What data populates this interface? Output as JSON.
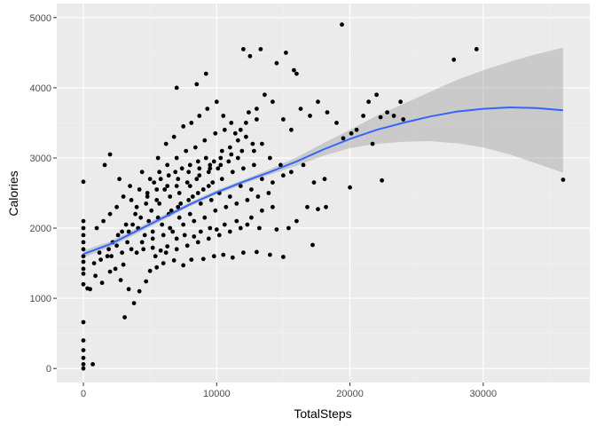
{
  "chart_data": {
    "type": "scatter",
    "title": "",
    "xlabel": "TotalSteps",
    "ylabel": "Calories",
    "xlim": [
      -2000,
      38000
    ],
    "ylim": [
      -200,
      5200
    ],
    "x_ticks": [
      0,
      10000,
      20000,
      30000
    ],
    "x_tick_labels": [
      "0",
      "10000",
      "20000",
      "30000"
    ],
    "y_ticks": [
      0,
      1000,
      2000,
      3000,
      4000,
      5000
    ],
    "y_tick_labels": [
      "0",
      "1000",
      "2000",
      "3000",
      "4000",
      "5000"
    ],
    "grid": true,
    "legend": "none",
    "colors": {
      "panel_background": "#ebebeb",
      "grid_major": "#ffffff",
      "grid_minor": "#f2f2f2",
      "points": "#000000",
      "smooth_line": "#3366ff",
      "confidence_band": "#999999"
    },
    "series": [
      {
        "kind": "points",
        "points": [
          [
            0,
            0
          ],
          [
            0,
            60
          ],
          [
            0,
            150
          ],
          [
            0,
            260
          ],
          [
            0,
            400
          ],
          [
            0,
            660
          ],
          [
            0,
            1200
          ],
          [
            0,
            1350
          ],
          [
            0,
            1420
          ],
          [
            0,
            1520
          ],
          [
            0,
            1600
          ],
          [
            0,
            1700
          ],
          [
            0,
            1800
          ],
          [
            0,
            1900
          ],
          [
            0,
            2000
          ],
          [
            0,
            2100
          ],
          [
            0,
            2660
          ],
          [
            700,
            60
          ],
          [
            300,
            1140
          ],
          [
            500,
            1130
          ],
          [
            900,
            1320
          ],
          [
            1400,
            1220
          ],
          [
            2000,
            1380
          ],
          [
            2400,
            1420
          ],
          [
            3000,
            1480
          ],
          [
            3400,
            1130
          ],
          [
            3800,
            930
          ],
          [
            4200,
            1100
          ],
          [
            4700,
            1240
          ],
          [
            5000,
            1390
          ],
          [
            5500,
            1440
          ],
          [
            6000,
            1500
          ],
          [
            6800,
            1540
          ],
          [
            7500,
            1470
          ],
          [
            8100,
            1550
          ],
          [
            9000,
            1560
          ],
          [
            9800,
            1600
          ],
          [
            10500,
            1620
          ],
          [
            11200,
            1580
          ],
          [
            12000,
            1650
          ],
          [
            13000,
            1660
          ],
          [
            14000,
            1620
          ],
          [
            15000,
            1590
          ],
          [
            3100,
            730
          ],
          [
            2800,
            1260
          ],
          [
            1800,
            1600
          ],
          [
            2500,
            1750
          ],
          [
            3300,
            1800
          ],
          [
            4000,
            1650
          ],
          [
            4500,
            1700
          ],
          [
            5200,
            1720
          ],
          [
            5800,
            1680
          ],
          [
            6300,
            1740
          ],
          [
            7000,
            1850
          ],
          [
            7600,
            1900
          ],
          [
            8300,
            1880
          ],
          [
            8800,
            1950
          ],
          [
            9500,
            2000
          ],
          [
            10000,
            1980
          ],
          [
            10600,
            2050
          ],
          [
            11500,
            2100
          ],
          [
            12300,
            2050
          ],
          [
            13200,
            2000
          ],
          [
            14500,
            1980
          ],
          [
            15400,
            2000
          ],
          [
            16000,
            2100
          ],
          [
            17200,
            1760
          ],
          [
            16800,
            2300
          ],
          [
            17600,
            2270
          ],
          [
            18200,
            2300
          ],
          [
            1000,
            2000
          ],
          [
            1500,
            2100
          ],
          [
            2000,
            2200
          ],
          [
            2500,
            2300
          ],
          [
            3000,
            2450
          ],
          [
            3600,
            2400
          ],
          [
            4200,
            2550
          ],
          [
            4800,
            2500
          ],
          [
            5300,
            2650
          ],
          [
            5800,
            2700
          ],
          [
            6400,
            2750
          ],
          [
            6900,
            2800
          ],
          [
            7400,
            2850
          ],
          [
            8000,
            2900
          ],
          [
            8600,
            2950
          ],
          [
            9200,
            3000
          ],
          [
            9800,
            2950
          ],
          [
            10400,
            3100
          ],
          [
            11000,
            3150
          ],
          [
            11600,
            3250
          ],
          [
            12200,
            3300
          ],
          [
            12800,
            3100
          ],
          [
            13400,
            3200
          ],
          [
            14000,
            3000
          ],
          [
            14800,
            2900
          ],
          [
            15600,
            2800
          ],
          [
            16500,
            2900
          ],
          [
            17300,
            2650
          ],
          [
            18100,
            2700
          ],
          [
            1600,
            2900
          ],
          [
            2000,
            3050
          ],
          [
            2700,
            2700
          ],
          [
            3500,
            2600
          ],
          [
            4400,
            2800
          ],
          [
            5600,
            3000
          ],
          [
            6200,
            3200
          ],
          [
            6800,
            3300
          ],
          [
            7500,
            3450
          ],
          [
            8100,
            3500
          ],
          [
            8700,
            3600
          ],
          [
            9300,
            3700
          ],
          [
            10000,
            3800
          ],
          [
            10500,
            3600
          ],
          [
            11100,
            3500
          ],
          [
            11800,
            3400
          ],
          [
            12400,
            3650
          ],
          [
            13000,
            3700
          ],
          [
            13600,
            3900
          ],
          [
            14200,
            3800
          ],
          [
            15000,
            3550
          ],
          [
            15600,
            3400
          ],
          [
            16300,
            3700
          ],
          [
            17000,
            3600
          ],
          [
            17600,
            3800
          ],
          [
            18300,
            3650
          ],
          [
            19000,
            3500
          ],
          [
            19500,
            3280
          ],
          [
            20100,
            3350
          ],
          [
            20500,
            3400
          ],
          [
            21000,
            3600
          ],
          [
            21400,
            3800
          ],
          [
            22000,
            3900
          ],
          [
            22300,
            3580
          ],
          [
            22800,
            3650
          ],
          [
            23300,
            3600
          ],
          [
            23800,
            3800
          ],
          [
            21700,
            3200
          ],
          [
            20000,
            2580
          ],
          [
            22400,
            2680
          ],
          [
            24000,
            3550
          ],
          [
            7000,
            4000
          ],
          [
            8500,
            4050
          ],
          [
            9200,
            4200
          ],
          [
            12000,
            4550
          ],
          [
            12500,
            4450
          ],
          [
            13300,
            4550
          ],
          [
            14500,
            4350
          ],
          [
            15800,
            4250
          ],
          [
            16000,
            4200
          ],
          [
            15200,
            4500
          ],
          [
            19400,
            4900
          ],
          [
            27800,
            4400
          ],
          [
            29500,
            4550
          ],
          [
            36000,
            2690
          ],
          [
            6500,
            2000
          ],
          [
            7200,
            2150
          ],
          [
            8000,
            2200
          ],
          [
            8800,
            2350
          ],
          [
            9600,
            2400
          ],
          [
            10200,
            2500
          ],
          [
            11000,
            2450
          ],
          [
            11800,
            2600
          ],
          [
            12600,
            2550
          ],
          [
            13400,
            2700
          ],
          [
            14200,
            2650
          ],
          [
            15000,
            2750
          ],
          [
            4600,
            1900
          ],
          [
            5200,
            1950
          ],
          [
            5900,
            2050
          ],
          [
            6600,
            2250
          ],
          [
            7300,
            2350
          ],
          [
            8200,
            2450
          ],
          [
            9000,
            2550
          ],
          [
            9700,
            2650
          ],
          [
            10400,
            2700
          ],
          [
            11200,
            2800
          ],
          [
            12000,
            2850
          ],
          [
            12800,
            2900
          ],
          [
            3200,
            2050
          ],
          [
            3900,
            2200
          ],
          [
            4700,
            2350
          ],
          [
            5500,
            2400
          ],
          [
            6100,
            2550
          ],
          [
            7000,
            2600
          ],
          [
            7800,
            2650
          ],
          [
            8500,
            2700
          ],
          [
            9400,
            2800
          ],
          [
            10100,
            2850
          ],
          [
            10900,
            2950
          ],
          [
            11600,
            3000
          ],
          [
            2200,
            1800
          ],
          [
            2900,
            1950
          ],
          [
            3700,
            2050
          ],
          [
            4300,
            2150
          ],
          [
            5100,
            2250
          ],
          [
            5700,
            2350
          ],
          [
            6500,
            2450
          ],
          [
            7200,
            2500
          ],
          [
            8000,
            2600
          ],
          [
            8700,
            2750
          ],
          [
            9500,
            2850
          ],
          [
            10300,
            2900
          ],
          [
            1200,
            1650
          ],
          [
            1900,
            1700
          ],
          [
            2600,
            1900
          ],
          [
            3400,
            1950
          ],
          [
            4100,
            2000
          ],
          [
            4900,
            2100
          ],
          [
            5600,
            2150
          ],
          [
            6400,
            2200
          ],
          [
            7100,
            2300
          ],
          [
            7900,
            2400
          ],
          [
            8600,
            2500
          ],
          [
            9400,
            2600
          ],
          [
            800,
            1500
          ],
          [
            1300,
            1550
          ],
          [
            2100,
            1600
          ],
          [
            2900,
            1650
          ],
          [
            3600,
            1700
          ],
          [
            4400,
            1800
          ],
          [
            5200,
            1850
          ],
          [
            6000,
            1900
          ],
          [
            6700,
            1950
          ],
          [
            7500,
            2050
          ],
          [
            8300,
            2100
          ],
          [
            9100,
            2150
          ],
          [
            9900,
            2250
          ],
          [
            10700,
            2300
          ],
          [
            11500,
            2350
          ],
          [
            12300,
            2400
          ],
          [
            13100,
            2450
          ],
          [
            13900,
            2500
          ],
          [
            5400,
            1600
          ],
          [
            6200,
            1650
          ],
          [
            7000,
            1700
          ],
          [
            7800,
            1750
          ],
          [
            8600,
            1800
          ],
          [
            9400,
            1850
          ],
          [
            10200,
            1900
          ],
          [
            11000,
            1950
          ],
          [
            11800,
            2000
          ],
          [
            12600,
            2150
          ],
          [
            13400,
            2250
          ],
          [
            14200,
            2300
          ],
          [
            5000,
            2700
          ],
          [
            5700,
            2800
          ],
          [
            6300,
            2900
          ],
          [
            7000,
            3000
          ],
          [
            7700,
            3100
          ],
          [
            8400,
            3150
          ],
          [
            9100,
            3250
          ],
          [
            9900,
            3350
          ],
          [
            10600,
            3400
          ],
          [
            11400,
            3350
          ],
          [
            12200,
            3500
          ],
          [
            13000,
            3550
          ],
          [
            4000,
            2300
          ],
          [
            4800,
            2450
          ],
          [
            5500,
            2550
          ],
          [
            6300,
            2600
          ],
          [
            7100,
            2700
          ],
          [
            7900,
            2800
          ],
          [
            8700,
            2850
          ],
          [
            9500,
            2900
          ],
          [
            10300,
            3000
          ],
          [
            11100,
            3050
          ],
          [
            11900,
            3100
          ],
          [
            12700,
            3200
          ]
        ]
      },
      {
        "kind": "smooth",
        "x": [
          0,
          2000,
          4000,
          6000,
          8000,
          10000,
          12000,
          14000,
          16000,
          18000,
          20000,
          22000,
          24000,
          26000,
          28000,
          30000,
          32000,
          34000,
          36000
        ],
        "y": [
          1630,
          1770,
          1960,
          2150,
          2340,
          2510,
          2660,
          2800,
          2950,
          3120,
          3270,
          3400,
          3500,
          3590,
          3660,
          3700,
          3720,
          3710,
          3680
        ],
        "ymin": [
          1580,
          1730,
          1920,
          2115,
          2310,
          2480,
          2630,
          2760,
          2890,
          3030,
          3140,
          3200,
          3230,
          3240,
          3210,
          3150,
          3050,
          2920,
          2790
        ],
        "ymax": [
          1680,
          1810,
          2000,
          2185,
          2370,
          2540,
          2690,
          2840,
          3010,
          3210,
          3400,
          3600,
          3770,
          3940,
          4110,
          4250,
          4370,
          4480,
          4570
        ]
      }
    ]
  }
}
